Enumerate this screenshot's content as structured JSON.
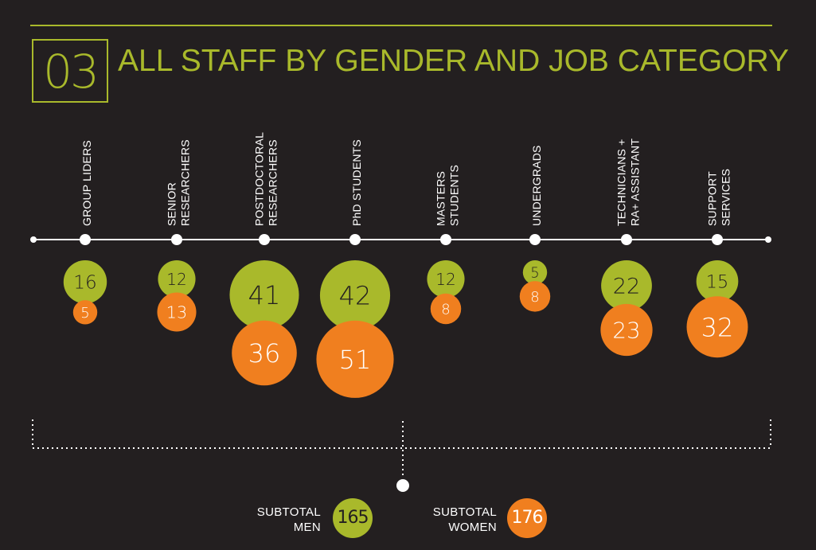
{
  "header": {
    "section_number": "03",
    "title": "ALL STAFF BY GENDER AND JOB CATEGORY"
  },
  "colors": {
    "background": "#231f20",
    "men": "#a9b92b",
    "women": "#f07f1f",
    "line": "#ffffff"
  },
  "chart_data": {
    "type": "bubble",
    "title": "ALL STAFF BY GENDER AND JOB CATEGORY",
    "categories": [
      [
        "GROUP LIDERS"
      ],
      [
        "SENIOR",
        "RESEARCHERS"
      ],
      [
        "POSTDOCTORAL",
        "RESEARCHERS"
      ],
      [
        "PhD STUDENTS"
      ],
      [
        "MASTERS",
        "STUDENTS"
      ],
      [
        "UNDERGRADS"
      ],
      [
        "TECHNICIANS +",
        "RA+ ASSISTANT"
      ],
      [
        "SUPPORT",
        "SERVICES"
      ]
    ],
    "series": [
      {
        "values": [
          16,
          12,
          41,
          42,
          12,
          5,
          22,
          15
        ]
      },
      {
        "values": [
          5,
          13,
          36,
          51,
          8,
          8,
          23,
          32
        ]
      }
    ]
  },
  "subtotals": {
    "men": {
      "label_line1": "SUBTOTAL",
      "label_line2": "MEN",
      "value": "165"
    },
    "women": {
      "label_line1": "SUBTOTAL",
      "label_line2": "WOMEN",
      "value": "176"
    }
  }
}
